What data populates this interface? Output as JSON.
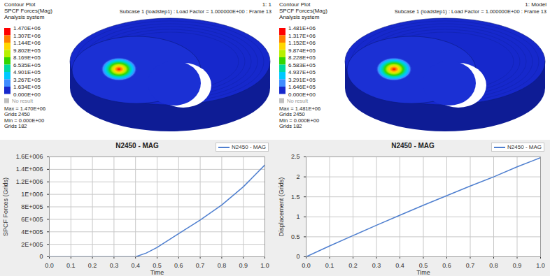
{
  "screen": {
    "contour_panels": [
      {
        "header": "1: 1",
        "subcase": "Subcase 1 (loadstep1) : Load Factor = 1.000000E+00 : Frame 13",
        "title_lines": [
          "Contour Plot",
          "SPCF Forces(Mag)",
          "Analysis system"
        ],
        "legend_values": [
          "1.470E+06",
          "1.307E+06",
          "1.144E+06",
          "9.802E+05",
          "8.169E+05",
          "6.535E+05",
          "4.901E+05",
          "3.267E+05",
          "1.634E+05",
          "0.000E+00"
        ],
        "colors": [
          "#ff0000",
          "#ff7f00",
          "#ffd700",
          "#b6f000",
          "#33d600",
          "#00d9a0",
          "#00c8ff",
          "#3f8cff",
          "#1628cc"
        ],
        "no_result": "No result",
        "summary": [
          "Max = 1.470E+06",
          "Grids 2450",
          "Min = 0.000E+00",
          "Grids 182"
        ]
      },
      {
        "header": "1: Model",
        "subcase": "Subcase 1 (loadstep1) : Load Factor = 1.000000E+00 : Frame 13",
        "title_lines": [
          "Contour Plot",
          "SPCF Forces(Mag)",
          "Analysis system"
        ],
        "legend_values": [
          "1.481E+06",
          "1.317E+06",
          "1.152E+06",
          "9.874E+05",
          "8.228E+05",
          "6.583E+05",
          "4.937E+05",
          "3.291E+05",
          "1.646E+05",
          "0.000E+00"
        ],
        "colors": [
          "#ff0000",
          "#ff7f00",
          "#ffd700",
          "#b6f000",
          "#33d600",
          "#00d9a0",
          "#00c8ff",
          "#3f8cff",
          "#1628cc"
        ],
        "no_result": "No result",
        "summary": [
          "Max = 1.481E+06",
          "Grids 2450",
          "Min = 0.000E+00",
          "Grids 182"
        ]
      }
    ]
  },
  "chart_data": [
    {
      "type": "line",
      "title": "N2450 - MAG",
      "x": [
        0,
        0.1,
        0.2,
        0.3,
        0.4,
        0.45,
        0.5,
        0.6,
        0.7,
        0.8,
        0.9,
        1.0
      ],
      "series": [
        {
          "name": "N2450 - MAG",
          "color": "#4f7fcf",
          "values": [
            0,
            0,
            0,
            0,
            0,
            60000,
            150000,
            370000,
            590000,
            830000,
            1120000,
            1470000
          ]
        }
      ],
      "xlabel": "Time",
      "ylabel": "SPCF Forces (Grids)",
      "xlim": [
        0,
        1
      ],
      "ylim": [
        0,
        1600000
      ],
      "xticks": [
        {
          "value": 0,
          "label": "0.0"
        },
        0.1,
        0.2,
        0.3,
        0.4,
        0.5,
        0.6,
        0.7,
        0.8,
        0.9,
        {
          "value": 1,
          "label": "1.0"
        }
      ],
      "yticks": [
        0,
        {
          "value": 200000,
          "label": "2E+005"
        },
        {
          "value": 400000,
          "label": "4E+005"
        },
        {
          "value": 600000,
          "label": "6E+005"
        },
        {
          "value": 800000,
          "label": "8E+005"
        },
        {
          "value": 1000000,
          "label": "1E+006"
        },
        {
          "value": 1200000,
          "label": "1.2E+006"
        },
        {
          "value": 1400000,
          "label": "1.4E+006"
        },
        {
          "value": 1600000,
          "label": "1.6E+006"
        }
      ],
      "grid": true,
      "legend": "top-right"
    },
    {
      "type": "line",
      "title": "N2450 - MAG",
      "x": [
        0,
        0.1,
        0.2,
        0.3,
        0.4,
        0.5,
        0.6,
        0.7,
        0.8,
        0.9,
        1.0
      ],
      "series": [
        {
          "name": "N2450 - MAG",
          "color": "#4f7fcf",
          "values": [
            0,
            0.27,
            0.53,
            0.79,
            1.04,
            1.29,
            1.53,
            1.77,
            2.0,
            2.25,
            2.48
          ]
        }
      ],
      "xlabel": "Time",
      "ylabel": "Displacement (Grids)",
      "xlim": [
        0,
        1
      ],
      "ylim": [
        0,
        2.5
      ],
      "xticks": [
        {
          "value": 0,
          "label": "0.0"
        },
        0.1,
        0.2,
        0.3,
        0.4,
        0.5,
        0.6,
        0.7,
        0.8,
        0.9,
        {
          "value": 1,
          "label": "1.0"
        }
      ],
      "yticks": [
        0,
        0.5,
        1,
        1.5,
        2,
        2.5
      ],
      "grid": true,
      "legend": "top-right"
    }
  ]
}
